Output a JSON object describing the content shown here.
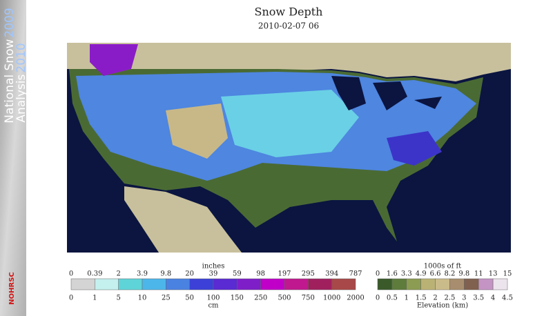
{
  "sidebar": {
    "line1": "National Snow",
    "year1": "2009",
    "line2": "Analysis",
    "year2": "2010",
    "logo": "NOHRSC"
  },
  "header": {
    "title": "Snow Depth",
    "date": "2010-02-07 06"
  },
  "snow_legend": {
    "top_unit": "inches",
    "bottom_unit": "cm",
    "top_labels": [
      0,
      0.39,
      2,
      3.9,
      9.8,
      20,
      39,
      59,
      98,
      197,
      295,
      394,
      787
    ],
    "bottom_labels": [
      0,
      1,
      5,
      10,
      25,
      50,
      100,
      150,
      250,
      500,
      750,
      1000,
      2000
    ],
    "colors": [
      "#d4d4d4",
      "#c4f0ee",
      "#5fd4d8",
      "#4cb6ea",
      "#4a82e2",
      "#3c40d8",
      "#5a2ad2",
      "#7e1ec8",
      "#c000c8",
      "#c0188e",
      "#a0205e",
      "#a84848"
    ]
  },
  "elevation_legend": {
    "top_unit": "1000s of ft",
    "bottom_unit": "Elevation (km)",
    "top_labels": [
      0,
      1.6,
      3.3,
      4.9,
      6.6,
      8.2,
      9.8,
      11,
      13,
      15
    ],
    "bottom_labels": [
      0,
      0.5,
      1,
      1.5,
      2,
      2.5,
      3,
      3.5,
      4,
      4.5
    ],
    "colors": [
      "#3a5a2a",
      "#5e7c3c",
      "#8c9c52",
      "#bab274",
      "#cabb8a",
      "#a88e6e",
      "#80604e",
      "#c494c4",
      "#ece4ec"
    ]
  }
}
